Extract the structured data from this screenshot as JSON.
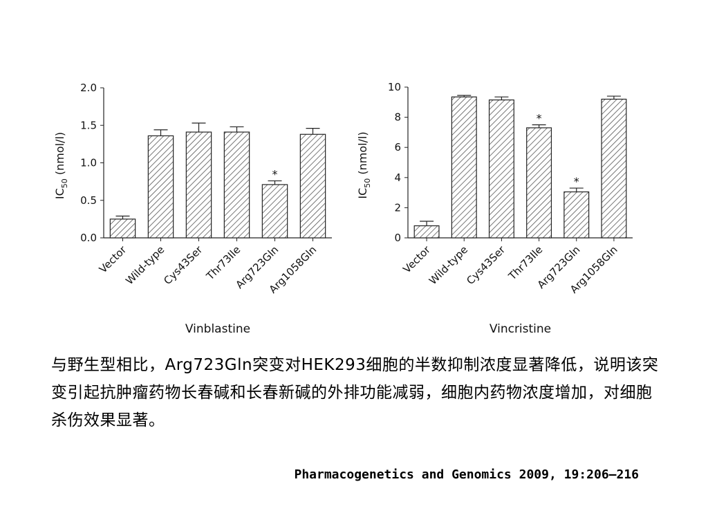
{
  "chart_data": [
    {
      "type": "bar",
      "title": "Vinblastine",
      "ylabel": "IC50 (nmol/l)",
      "ylabel_main": "IC",
      "ylabel_sub": "50",
      "ylabel_unit": " (nmol/l)",
      "ylim": [
        0,
        2.0
      ],
      "yticks": [
        "0.0",
        "0.5",
        "1.0",
        "1.5",
        "2.0"
      ],
      "categories": [
        "Vector",
        "Wild-type",
        "Cys43Ser",
        "Thr73Ile",
        "Arg723Gln",
        "Arg1058Gln"
      ],
      "values": [
        0.25,
        1.36,
        1.41,
        1.41,
        0.71,
        1.38
      ],
      "errors": [
        0.04,
        0.08,
        0.12,
        0.07,
        0.05,
        0.08
      ],
      "significant": [
        false,
        false,
        false,
        false,
        true,
        false
      ],
      "significance_marker": "*"
    },
    {
      "type": "bar",
      "title": "Vincristine",
      "ylabel": "IC50 (nmol/l)",
      "ylabel_main": "IC",
      "ylabel_sub": "50",
      "ylabel_unit": " (nmol/l)",
      "ylim": [
        0,
        10
      ],
      "yticks": [
        "0",
        "2",
        "4",
        "6",
        "8",
        "10"
      ],
      "categories": [
        "Vector",
        "Wild-type",
        "Cys43Ser",
        "Thr73Ile",
        "Arg723Gln",
        "Arg1058Gln"
      ],
      "values": [
        0.8,
        9.35,
        9.15,
        7.3,
        3.05,
        9.2
      ],
      "errors": [
        0.3,
        0.1,
        0.2,
        0.2,
        0.25,
        0.2
      ],
      "significant": [
        false,
        false,
        false,
        true,
        true,
        false
      ],
      "significance_marker": "*"
    }
  ],
  "caption": "与野生型相比，Arg723Gln突变对HEK293细胞的半数抑制浓度显著降低，说明该突变引起抗肿瘤药物长春碱和长春新碱的外排功能减弱，细胞内药物浓度增加，对细胞杀伤效果显著。",
  "citation": "Pharmacogenetics and Genomics 2009, 19:206–216",
  "colors": {
    "bar_fill": "#ffffff",
    "bar_hatch": "#555555",
    "axis": "#222222"
  }
}
